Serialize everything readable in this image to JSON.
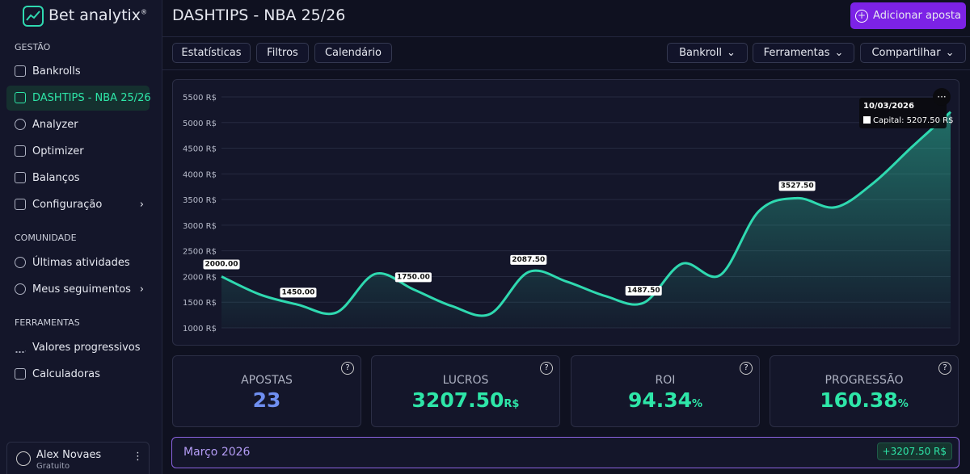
{
  "brand": {
    "name": "Bet analytix",
    "mark": "®"
  },
  "sidebar": {
    "sections": [
      {
        "title": "GESTÃO",
        "items": [
          "Bankrolls",
          "DASHTIPS - NBA 25/26",
          "Analyzer",
          "Optimizer",
          "Balanços",
          "Configuração"
        ]
      },
      {
        "title": "COMUNIDADE",
        "items": [
          "Últimas atividades",
          "Meus seguimentos"
        ]
      },
      {
        "title": "FERRAMENTAS",
        "items": [
          "Valores progressivos",
          "Calculadoras"
        ]
      }
    ],
    "user": {
      "name": "Alex Novaes",
      "plan": "Gratuito"
    }
  },
  "header": {
    "title": "DASHTIPS - NBA 25/26",
    "button": "Adicionar aposta"
  },
  "toolbar": {
    "left": [
      "Estatísticas",
      "Filtros",
      "Calendário"
    ],
    "right": [
      "Bankroll",
      "Ferramentas",
      "Compartilhar"
    ]
  },
  "chart": {
    "type": "line",
    "color": "#2fd9b0",
    "categories": [
      null,
      null,
      null,
      null,
      null,
      null,
      null,
      null,
      null,
      null,
      null,
      null,
      null,
      null,
      null,
      null,
      null,
      null,
      null,
      "10/03/2026"
    ],
    "series": [
      {
        "name": "Capital",
        "color": "#2fd9b0",
        "values": [
          2000,
          1650,
          1450,
          1300,
          2050,
          1750,
          1425,
          1270,
          2087.5,
          1900,
          1620,
          1487.5,
          2250,
          2030,
          3270,
          3527.5,
          3350,
          3830,
          4530,
          5207.5
        ],
        "value_labels": [
          "2000.00",
          null,
          "1450.00",
          null,
          null,
          "1750.00",
          null,
          null,
          "2087.50",
          null,
          null,
          "1487.50",
          null,
          null,
          null,
          "3527.50",
          null,
          null,
          null,
          null
        ]
      }
    ],
    "ylim": [
      1000,
      5500
    ],
    "yticks": [
      {
        "value": 1000,
        "label": "1000 R$"
      },
      {
        "value": 1500,
        "label": "1500 R$"
      },
      {
        "value": 2000,
        "label": "2000 R$"
      },
      {
        "value": 2500,
        "label": "2500 R$"
      },
      {
        "value": 3000,
        "label": "3000 R$"
      },
      {
        "value": 3500,
        "label": "3500 R$"
      },
      {
        "value": 4000,
        "label": "4000 R$"
      },
      {
        "value": 4500,
        "label": "4500 R$"
      },
      {
        "value": 5000,
        "label": "5000 R$"
      },
      {
        "value": 5500,
        "label": "5500 R$"
      }
    ],
    "grid": true,
    "tooltip": {
      "label": "Capital: 5207.50 R$"
    }
  },
  "stats": [
    {
      "label": "APOSTAS",
      "value": "23",
      "unit": null
    },
    {
      "label": "LUCROS",
      "value": "3207.50",
      "unit": "R$"
    },
    {
      "label": "ROI",
      "value": "94.34",
      "unit": "%"
    },
    {
      "label": "PROGRESSÃO",
      "value": "160.38",
      "unit": "%"
    }
  ],
  "month": {
    "label": "Março 2026",
    "total": "+3207.50 R$"
  }
}
